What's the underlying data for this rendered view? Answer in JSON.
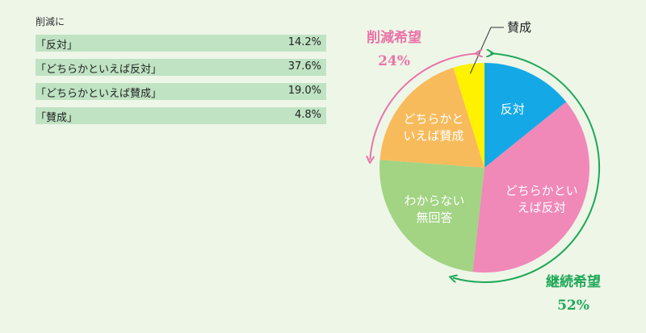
{
  "table": {
    "title": "削減に",
    "rows": [
      {
        "label": "「反対」",
        "value": "14.2%"
      },
      {
        "label": "「どちらかといえば反対」",
        "value": "37.6%"
      },
      {
        "label": "「どちらかといえば賛成」",
        "value": "19.0%"
      },
      {
        "label": "「賛成」",
        "value": "4.8%"
      }
    ]
  },
  "chart_data": {
    "type": "pie",
    "slices": [
      {
        "name": "反対",
        "value": 14.2,
        "color": "#14a9e6",
        "label_lines": [
          "反対"
        ]
      },
      {
        "name": "どちらかといえば反対",
        "value": 37.6,
        "color": "#f088b8",
        "label_lines": [
          "どちらかとい",
          "えば反対"
        ]
      },
      {
        "name": "わからない・無回答",
        "value": 24.4,
        "color": "#a2d483",
        "label_lines": [
          "わからない",
          "無回答"
        ]
      },
      {
        "name": "どちらかといえば賛成",
        "value": 19.0,
        "color": "#f8bb5c",
        "label_lines": [
          "どちらかと",
          "いえば賛成"
        ]
      },
      {
        "name": "賛成",
        "value": 4.8,
        "color": "#fff200",
        "label_lines": []
      }
    ],
    "callout": "賛成",
    "groups": [
      {
        "name": "削減希望",
        "value": "24%",
        "color": "#ea74a8"
      },
      {
        "name": "継続希望",
        "value": "52%",
        "color": "#1fa858"
      }
    ]
  }
}
